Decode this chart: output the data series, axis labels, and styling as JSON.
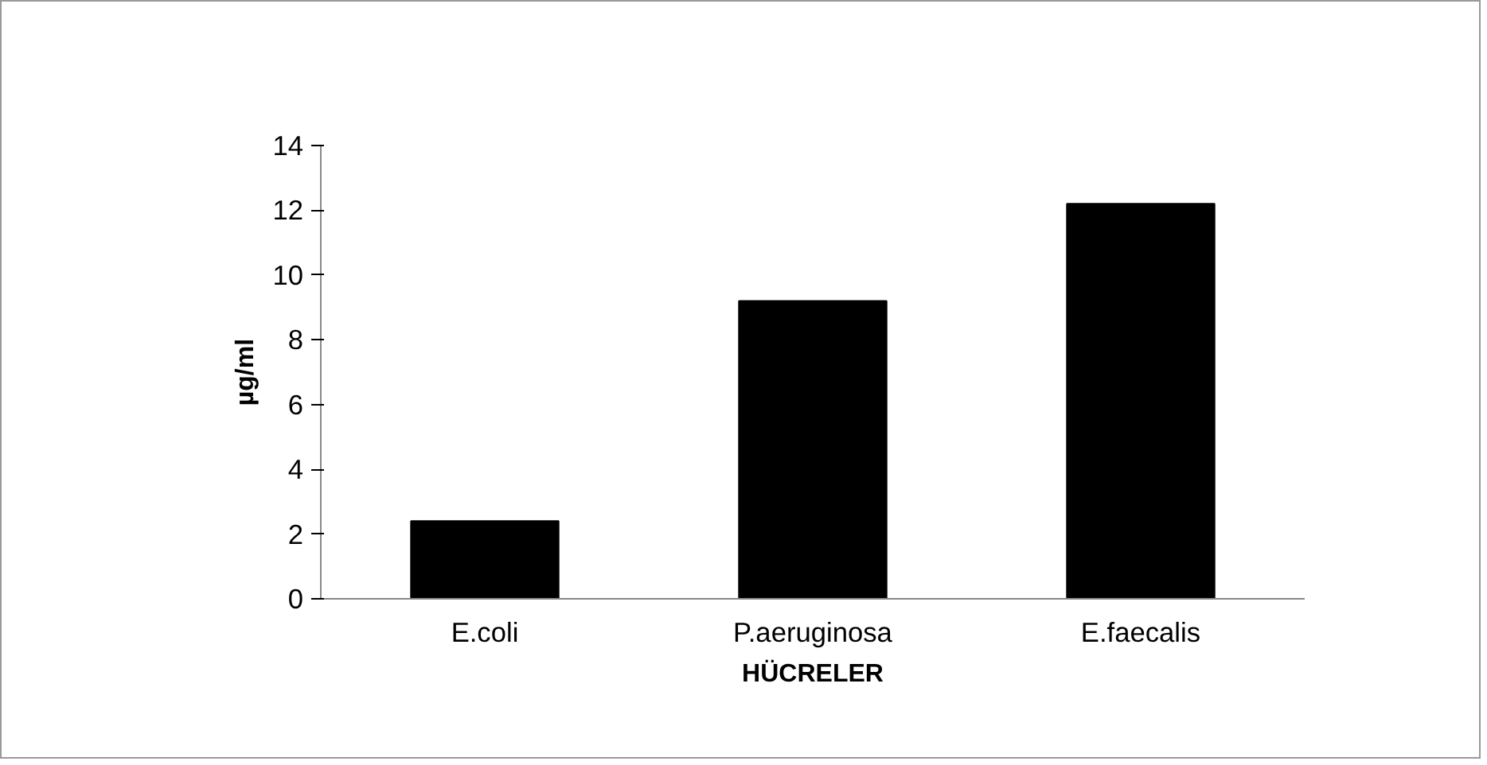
{
  "chart_data": {
    "type": "bar",
    "xlabel": "HÜCRELER",
    "ylabel": "µg/ml",
    "categories": [
      "E.coli",
      "P.aeruginosa",
      "E.faecalis"
    ],
    "values": [
      2.4,
      9.2,
      12.2
    ],
    "color": "#000000",
    "ylim": [
      0,
      14
    ],
    "yticks": [
      0,
      2,
      4,
      6,
      8,
      10,
      12,
      14
    ],
    "grid": false
  }
}
